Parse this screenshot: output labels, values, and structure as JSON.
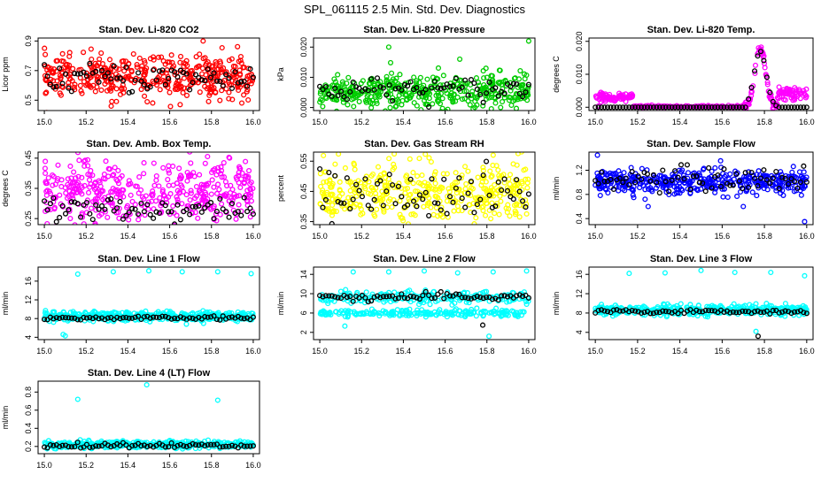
{
  "figure_title": "SPL_061115  2.5 Min. Std. Dev. Diagnostics",
  "chart_data": [
    {
      "type": "scatter",
      "title": "Stan. Dev. Li-820 CO2",
      "ylabel": "Licor ppm",
      "xlim": [
        14.97,
        16.03
      ],
      "ylim": [
        0.43,
        0.92
      ],
      "xticks": [
        15.0,
        15.2,
        15.4,
        15.6,
        15.8,
        16.0
      ],
      "xtick_labels": [
        "15.0",
        "15.2",
        "15.4",
        "15.6",
        "15.8",
        "16.0"
      ],
      "yticks": [
        0.5,
        0.7,
        0.9
      ],
      "ytick_labels": [
        "0.5",
        "0.7",
        "0.9"
      ],
      "series": [
        {
          "name": "primary",
          "color": "#ff0000",
          "center": 0.66,
          "spread": 0.07
        },
        {
          "name": "overlay",
          "color": "#000000",
          "center": 0.65,
          "spread": 0.05
        }
      ],
      "outliers": [
        {
          "x": 15.76,
          "y": 0.9,
          "color": "#ff0000"
        },
        {
          "x": 15.65,
          "y": 0.47,
          "color": "#ff0000"
        },
        {
          "x": 15.32,
          "y": 0.46,
          "color": "#ff0000"
        }
      ]
    },
    {
      "type": "scatter",
      "title": "Stan. Dev. Li-820 Pressure",
      "ylabel": "kPa",
      "xlim": [
        14.97,
        16.03
      ],
      "ylim": [
        -0.001,
        0.023
      ],
      "xticks": [
        15.0,
        15.2,
        15.4,
        15.6,
        15.8,
        16.0
      ],
      "xtick_labels": [
        "15.0",
        "15.2",
        "15.4",
        "15.6",
        "15.8",
        "16.0"
      ],
      "yticks": [
        0.0,
        0.01,
        0.02
      ],
      "ytick_labels": [
        "0.000",
        "0.010",
        "0.020"
      ],
      "series": [
        {
          "name": "primary",
          "color": "#00cc00",
          "center": 0.005,
          "spread": 0.003
        },
        {
          "name": "overlay",
          "color": "#000000",
          "center": 0.006,
          "spread": 0.002
        }
      ],
      "outliers": [
        {
          "x": 15.33,
          "y": 0.02,
          "color": "#00cc00"
        },
        {
          "x": 15.67,
          "y": 0.016,
          "color": "#00cc00"
        },
        {
          "x": 16.0,
          "y": 0.022,
          "color": "#00cc00"
        }
      ]
    },
    {
      "type": "scatter",
      "title": "Stan. Dev. Li-820 Temp.",
      "ylabel": "degrees C",
      "xlim": [
        14.97,
        16.03
      ],
      "ylim": [
        -0.001,
        0.021
      ],
      "xticks": [
        15.0,
        15.2,
        15.4,
        15.6,
        15.8,
        16.0
      ],
      "xtick_labels": [
        "15.0",
        "15.2",
        "15.4",
        "15.6",
        "15.8",
        "16.0"
      ],
      "yticks": [
        0.0,
        0.01,
        0.02
      ],
      "ytick_labels": [
        "0.000",
        "0.010",
        "0.020"
      ],
      "series": [
        {
          "name": "primary",
          "color": "#ff00ff",
          "center": 0.0,
          "spread": 0.0005
        },
        {
          "name": "overlay",
          "color": "#000000",
          "center": 0.0,
          "spread": 0.0003
        }
      ],
      "notes": "Elevated segment 15.0-15.18 around 0.003; spike near 15.78 reaching 0.018"
    },
    {
      "type": "scatter",
      "title": "Stan. Dev. Amb. Box Temp.",
      "ylabel": "degrees C",
      "xlim": [
        14.97,
        16.03
      ],
      "ylim": [
        0.23,
        0.47
      ],
      "xticks": [
        15.0,
        15.2,
        15.4,
        15.6,
        15.8,
        16.0
      ],
      "xtick_labels": [
        "15.0",
        "15.2",
        "15.4",
        "15.6",
        "15.8",
        "16.0"
      ],
      "yticks": [
        0.25,
        0.35,
        0.45
      ],
      "ytick_labels": [
        "0.25",
        "0.35",
        "0.45"
      ],
      "series": [
        {
          "name": "primary",
          "color": "#ff00ff",
          "center": 0.34,
          "spread": 0.05
        },
        {
          "name": "overlay",
          "color": "#000000",
          "center": 0.28,
          "spread": 0.02
        }
      ]
    },
    {
      "type": "scatter",
      "title": "Stan. Dev. Gas Stream RH",
      "ylabel": "percent",
      "xlim": [
        14.97,
        16.03
      ],
      "ylim": [
        0.34,
        0.58
      ],
      "xticks": [
        15.0,
        15.2,
        15.4,
        15.6,
        15.8,
        16.0
      ],
      "xtick_labels": [
        "15.0",
        "15.2",
        "15.4",
        "15.6",
        "15.8",
        "16.0"
      ],
      "yticks": [
        0.35,
        0.45,
        0.55
      ],
      "ytick_labels": [
        "0.35",
        "0.45",
        "0.55"
      ],
      "series": [
        {
          "name": "primary",
          "color": "#ffff00",
          "center": 0.45,
          "spread": 0.05
        },
        {
          "name": "overlay",
          "color": "#000000",
          "center": 0.44,
          "spread": 0.04
        }
      ]
    },
    {
      "type": "scatter",
      "title": "Stan. Dev. Sample Flow",
      "ylabel": "ml/min",
      "xlim": [
        14.97,
        16.03
      ],
      "ylim": [
        0.3,
        1.5
      ],
      "xticks": [
        15.0,
        15.2,
        15.4,
        15.6,
        15.8,
        16.0
      ],
      "xtick_labels": [
        "15.0",
        "15.2",
        "15.4",
        "15.6",
        "15.8",
        "16.0"
      ],
      "yticks": [
        0.4,
        0.8,
        1.2
      ],
      "ytick_labels": [
        "0.4",
        "0.8",
        "1.2"
      ],
      "series": [
        {
          "name": "primary",
          "color": "#0000ff",
          "center": 1.0,
          "spread": 0.1
        },
        {
          "name": "overlay",
          "color": "#000000",
          "center": 1.05,
          "spread": 0.1
        }
      ],
      "outliers": [
        {
          "x": 15.99,
          "y": 0.35,
          "color": "#0000ff"
        },
        {
          "x": 15.25,
          "y": 0.6,
          "color": "#0000ff"
        },
        {
          "x": 15.7,
          "y": 0.6,
          "color": "#0000ff"
        },
        {
          "x": 15.01,
          "y": 1.45,
          "color": "#0000ff"
        }
      ]
    },
    {
      "type": "scatter",
      "title": "Stan. Dev. Line 1 Flow",
      "ylabel": "ml/min",
      "xlim": [
        14.97,
        16.03
      ],
      "ylim": [
        3.5,
        19
      ],
      "xticks": [
        15.0,
        15.2,
        15.4,
        15.6,
        15.8,
        16.0
      ],
      "xtick_labels": [
        "15.0",
        "15.2",
        "15.4",
        "15.6",
        "15.8",
        "16.0"
      ],
      "yticks": [
        4,
        8,
        12,
        16
      ],
      "ytick_labels": [
        "4",
        "8",
        "12",
        "16"
      ],
      "series": [
        {
          "name": "primary",
          "color": "#00ffff",
          "center": 8.5,
          "spread": 0.5
        },
        {
          "name": "overlay",
          "color": "#000000",
          "center": 8.1,
          "spread": 0.2
        }
      ],
      "outliers": [
        {
          "x": 15.16,
          "y": 17.5,
          "color": "#00ffff"
        },
        {
          "x": 15.33,
          "y": 18.0,
          "color": "#00ffff"
        },
        {
          "x": 15.5,
          "y": 18.2,
          "color": "#00ffff"
        },
        {
          "x": 15.66,
          "y": 18.0,
          "color": "#00ffff"
        },
        {
          "x": 15.83,
          "y": 18.0,
          "color": "#00ffff"
        },
        {
          "x": 15.99,
          "y": 17.6,
          "color": "#00ffff"
        },
        {
          "x": 15.1,
          "y": 4.3,
          "color": "#00ffff"
        },
        {
          "x": 15.09,
          "y": 4.6,
          "color": "#00ffff"
        },
        {
          "x": 15.68,
          "y": 6.8,
          "color": "#00ffff"
        }
      ]
    },
    {
      "type": "scatter",
      "title": "Stan. Dev. Line 2 Flow",
      "ylabel": "ml/min",
      "xlim": [
        14.97,
        16.03
      ],
      "ylim": [
        0.5,
        15.5
      ],
      "xticks": [
        15.0,
        15.2,
        15.4,
        15.6,
        15.8,
        16.0
      ],
      "xtick_labels": [
        "15.0",
        "15.2",
        "15.4",
        "15.6",
        "15.8",
        "16.0"
      ],
      "yticks": [
        2,
        6,
        10,
        14
      ],
      "ytick_labels": [
        "2",
        "6",
        "10",
        "14"
      ],
      "series": [
        {
          "name": "primary",
          "color": "#00ffff",
          "center": 9.2,
          "spread": 0.6
        },
        {
          "name": "overlay",
          "color": "#000000",
          "center": 9.3,
          "spread": 0.4
        }
      ],
      "outliers": [
        {
          "x": 15.16,
          "y": 14.5,
          "color": "#00ffff"
        },
        {
          "x": 15.33,
          "y": 14.5,
          "color": "#00ffff"
        },
        {
          "x": 15.5,
          "y": 14.7,
          "color": "#00ffff"
        },
        {
          "x": 15.66,
          "y": 14.3,
          "color": "#00ffff"
        },
        {
          "x": 15.83,
          "y": 14.5,
          "color": "#00ffff"
        },
        {
          "x": 15.99,
          "y": 14.7,
          "color": "#00ffff"
        },
        {
          "x": 15.81,
          "y": 1.2,
          "color": "#00ffff"
        },
        {
          "x": 15.12,
          "y": 3.3,
          "color": "#00ffff"
        },
        {
          "x": 15.78,
          "y": 3.5,
          "color": "#000000"
        }
      ],
      "notes": "Second cyan band near 6 ml/min"
    },
    {
      "type": "scatter",
      "title": "Stan. Dev. Line 3 Flow",
      "ylabel": "ml/min",
      "xlim": [
        14.97,
        16.03
      ],
      "ylim": [
        2.5,
        17.5
      ],
      "xticks": [
        15.0,
        15.2,
        15.4,
        15.6,
        15.8,
        16.0
      ],
      "xtick_labels": [
        "15.0",
        "15.2",
        "15.4",
        "15.6",
        "15.8",
        "16.0"
      ],
      "yticks": [
        4,
        8,
        12,
        16
      ],
      "ytick_labels": [
        "4",
        "8",
        "12",
        "16"
      ],
      "series": [
        {
          "name": "primary",
          "color": "#00ffff",
          "center": 8.6,
          "spread": 0.5
        },
        {
          "name": "overlay",
          "color": "#000000",
          "center": 8.3,
          "spread": 0.2
        }
      ],
      "outliers": [
        {
          "x": 15.16,
          "y": 16.2,
          "color": "#00ffff"
        },
        {
          "x": 15.33,
          "y": 16.3,
          "color": "#00ffff"
        },
        {
          "x": 15.5,
          "y": 16.8,
          "color": "#00ffff"
        },
        {
          "x": 15.66,
          "y": 16.4,
          "color": "#00ffff"
        },
        {
          "x": 15.83,
          "y": 16.4,
          "color": "#00ffff"
        },
        {
          "x": 15.99,
          "y": 15.7,
          "color": "#00ffff"
        },
        {
          "x": 15.77,
          "y": 3.2,
          "color": "#000000"
        },
        {
          "x": 15.76,
          "y": 4.2,
          "color": "#00ffff"
        }
      ]
    },
    {
      "type": "scatter",
      "title": "Stan. Dev. Line 4 (LT) Flow",
      "ylabel": "ml/min",
      "xlim": [
        14.97,
        16.03
      ],
      "ylim": [
        0.12,
        0.92
      ],
      "xticks": [
        15.0,
        15.2,
        15.4,
        15.6,
        15.8,
        16.0
      ],
      "xtick_labels": [
        "15.0",
        "15.2",
        "15.4",
        "15.6",
        "15.8",
        "16.0"
      ],
      "yticks": [
        0.2,
        0.4,
        0.6,
        0.8
      ],
      "ytick_labels": [
        "0.2",
        "0.4",
        "0.6",
        "0.8"
      ],
      "series": [
        {
          "name": "primary",
          "color": "#00ffff",
          "center": 0.22,
          "spread": 0.02
        },
        {
          "name": "overlay",
          "color": "#000000",
          "center": 0.21,
          "spread": 0.015
        }
      ],
      "outliers": [
        {
          "x": 15.16,
          "y": 0.72,
          "color": "#00ffff"
        },
        {
          "x": 15.49,
          "y": 0.88,
          "color": "#00ffff"
        },
        {
          "x": 15.83,
          "y": 0.71,
          "color": "#00ffff"
        }
      ]
    }
  ]
}
